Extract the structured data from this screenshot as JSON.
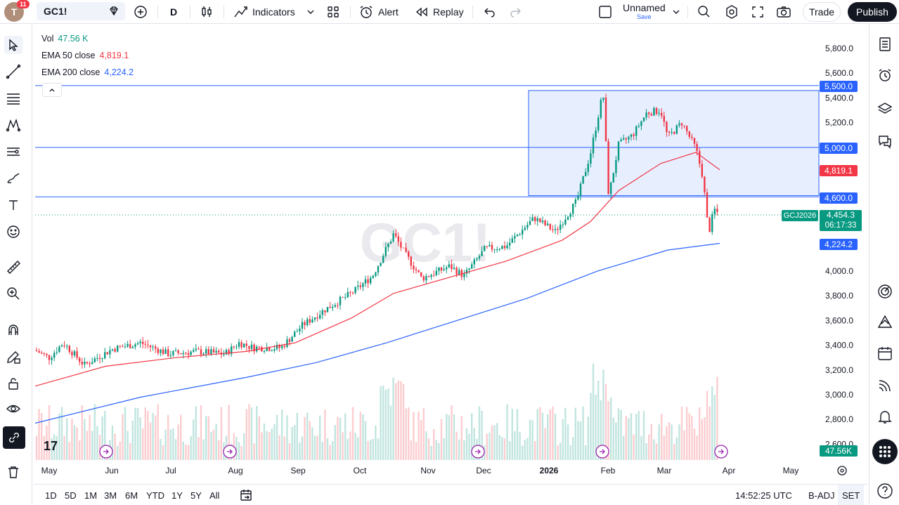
{
  "header": {
    "avatar_letter": "T",
    "notifications": "11",
    "symbol": "GC1!",
    "interval": "D",
    "indicators_label": "Indicators",
    "alert_label": "Alert",
    "replay_label": "Replay",
    "layout_name": "Unnamed",
    "layout_status": "Save",
    "trade_label": "Trade",
    "publish_label": "Publish"
  },
  "legend": {
    "vol_label": "Vol",
    "vol_value": "47.56 K",
    "ema50_label": "EMA 50 close",
    "ema50_value": "4,819.1",
    "ema200_label": "EMA 200 close",
    "ema200_value": "4,224.2"
  },
  "watermark": "GC1!",
  "price_axis": {
    "ticks": [
      "5,800.0",
      "5,600.0",
      "5,400.0",
      "5,200.0",
      "4,000.0",
      "3,800.0",
      "3,600.0",
      "3,400.0",
      "3,200.0",
      "3,000.0",
      "2,800.0",
      "2,600.0"
    ],
    "labels": {
      "level_5500": "5,500.0",
      "level_5000": "5,000.0",
      "ema50": "4,819.1",
      "level_4600": "4,600.0",
      "contract": "GCJ2026",
      "last_price": "4,454.3",
      "countdown": "06:17:33",
      "ema200": "4,224.2",
      "volume": "47.56K"
    }
  },
  "time_axis": {
    "labels": [
      "May",
      "Jun",
      "Jul",
      "Aug",
      "Sep",
      "Oct",
      "Nov",
      "Dec",
      "2026",
      "Feb",
      "Mar",
      "Apr",
      "May"
    ]
  },
  "bottom": {
    "ranges": [
      "1D",
      "5D",
      "1M",
      "3M",
      "6M",
      "YTD",
      "1Y",
      "5Y",
      "All"
    ],
    "clock": "14:52:25 UTC",
    "adj": "B-ADJ",
    "session": "SET"
  },
  "colors": {
    "up": "#089981",
    "down": "#f23645",
    "ema50": "#f23645",
    "ema200": "#2962ff",
    "hline": "#2962ff",
    "rect_fill": "#e3ecff"
  },
  "chart_data": {
    "type": "candlestick",
    "levels": [
      5500,
      5000,
      4600
    ],
    "box": {
      "top": 5460,
      "bottom": 4610,
      "start": "2025-12-24",
      "end": "open-right"
    },
    "last_price": 4454.3,
    "ema50_last": 4819.1,
    "ema200_last": 4224.2,
    "series_key_prices": [
      {
        "month": "May",
        "close": 3360
      },
      {
        "month": "Jun",
        "close": 3400
      },
      {
        "month": "Jul",
        "close": 3350
      },
      {
        "month": "Aug",
        "close": 3400
      },
      {
        "month": "Sep",
        "close": 3740
      },
      {
        "month": "Oct",
        "close": 4100
      },
      {
        "month": "Nov",
        "close": 4050
      },
      {
        "month": "Dec",
        "close": 4300
      },
      {
        "month": "2026",
        "close": 4600
      },
      {
        "month": "Feb",
        "close": 4900
      },
      {
        "month": "Mar",
        "close": 5200
      },
      {
        "month": "Apr",
        "close": 4454.3
      }
    ]
  }
}
